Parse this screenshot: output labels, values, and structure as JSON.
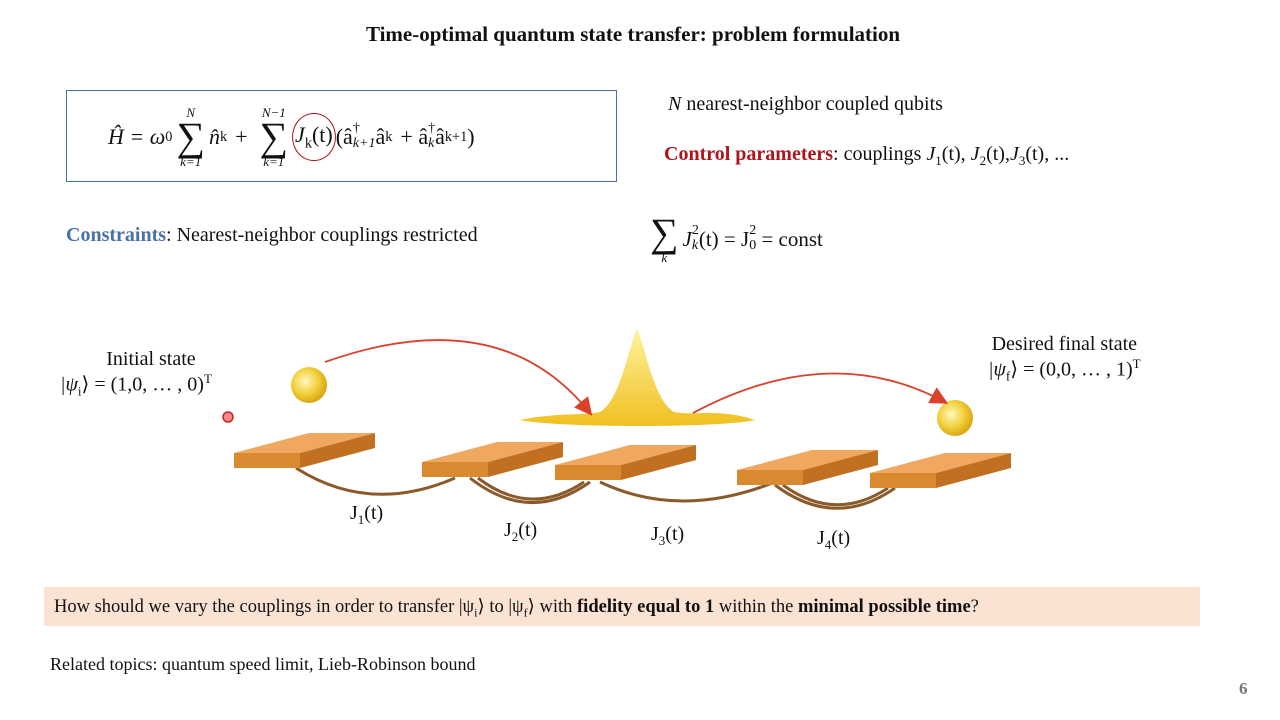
{
  "title": "Time-optimal quantum state transfer: problem formulation",
  "hamiltonian": [
    "Ĥ = ω",
    "0",
    "N",
    "∑",
    "k=1",
    "n̂",
    "k",
    "+",
    "N−1",
    "∑",
    "k=1",
    "J",
    "k",
    "(t)",
    "(â",
    "†",
    "k+1",
    "â",
    "k",
    "+ â",
    "†",
    "k",
    "â",
    "k+1",
    ")"
  ],
  "qubits": {
    "symbol": "N",
    "text": "nearest-neighbor coupled qubits"
  },
  "control": {
    "label": "Control parameters",
    "text": ": couplings",
    "couplings": [
      {
        "symbol": "J",
        "sub": "1",
        "arg": "(t),"
      },
      {
        "symbol": "J",
        "sub": "2",
        "arg": "(t),"
      },
      {
        "symbol": "J",
        "sub": "3",
        "arg": "(t), ..."
      }
    ]
  },
  "constraints": {
    "label": "Constraints",
    "text": ":  Nearest-neighbor couplings restricted"
  },
  "constraint_formula": [
    "∑",
    "k",
    "J",
    "k",
    "2",
    "(t) = J",
    "0",
    "2",
    " = const"
  ],
  "initial": {
    "label": "Initial state",
    "ket": "|ψ",
    "ket_sub": "i",
    "ket_rest": "⟩ = (1,0, … , 0)",
    "sup": "T"
  },
  "final": {
    "label": "Desired final state",
    "ket": "|ψ",
    "ket_sub": "f",
    "ket_rest": "⟩ = (0,0, … , 1)",
    "sup": "T"
  },
  "coupling_labels": [
    {
      "symbol": "J",
      "sub": "1",
      "arg": "(t)"
    },
    {
      "symbol": "J",
      "sub": "2",
      "arg": "(t)"
    },
    {
      "symbol": "J",
      "sub": "3",
      "arg": "(t)"
    },
    {
      "symbol": "J",
      "sub": "4",
      "arg": "(t)"
    }
  ],
  "question": [
    "How should we vary the couplings in order to transfer |ψ",
    "i",
    "⟩ to |ψ",
    "f",
    "⟩ with ",
    "fidelity equal to 1",
    " within the ",
    "minimal possible time",
    "?"
  ],
  "related": "Related topics: quantum speed limit, Lieb-Robinson bound",
  "page_number": "6"
}
